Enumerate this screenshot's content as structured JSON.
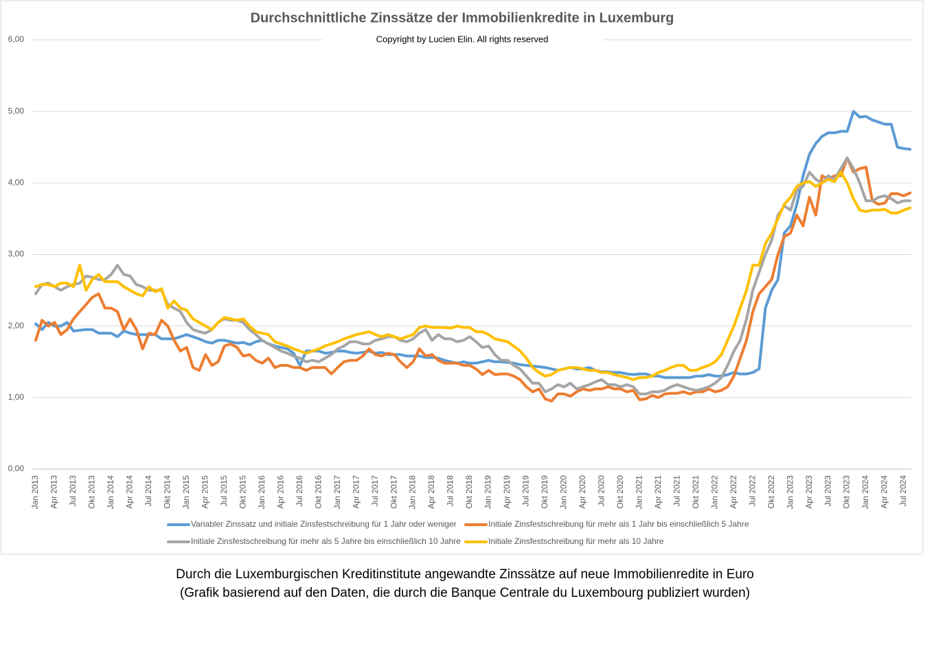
{
  "chart_data": {
    "type": "line",
    "title": "Durchschnittliche Zinssätze der Immobilienkredite in Luxemburg",
    "subtitle": "Copyright by Lucien Elin. All rights reserved",
    "caption": [
      "Durch die Luxemburgischen Kreditinstitute angewandte Zinssätze auf neue Immobilienredite in Euro",
      "(Grafik basierend auf den Daten, die durch die Banque Centrale du Luxembourg publiziert wurden)"
    ],
    "categories": [
      "Jan 2013",
      null,
      null,
      "Apr 2013",
      null,
      null,
      "Jul 2013",
      null,
      null,
      "Okt 2013",
      null,
      null,
      "Jan 2014",
      null,
      null,
      "Apr 2014",
      null,
      null,
      "Jul 2014",
      null,
      null,
      "Okt 2014",
      null,
      null,
      "Jan 2015",
      null,
      null,
      "Apr 2015",
      null,
      null,
      "Jul 2015",
      null,
      null,
      "Okt 2015",
      null,
      null,
      "Jan 2016",
      null,
      null,
      "Apr 2016",
      null,
      null,
      "Jul 2016",
      null,
      null,
      "Okt 2016",
      null,
      null,
      "Jan 2017",
      null,
      null,
      "Apr 2017",
      null,
      null,
      "Jul 2017",
      null,
      null,
      "Okt 2017",
      null,
      null,
      "Jan 2018",
      null,
      null,
      "Apr 2018",
      null,
      null,
      "Jul 2018",
      null,
      null,
      "Okt 2018",
      null,
      null,
      "Jan 2019",
      null,
      null,
      "Apr 2019",
      null,
      null,
      "Jul 2019",
      null,
      null,
      "Okt 2019",
      null,
      null,
      "Jan 2020",
      null,
      null,
      "Apr 2020",
      null,
      null,
      "Jul 2020",
      null,
      null,
      "Okt 2020",
      null,
      null,
      "Jan 2021",
      null,
      null,
      "Apr 2021",
      null,
      null,
      "Jul 2021",
      null,
      null,
      "Okt 2021",
      null,
      null,
      "Jan 2022",
      null,
      null,
      "Apr 2022",
      null,
      null,
      "Jul 2022",
      null,
      null,
      "Okt 2022",
      null,
      null,
      "Jan 2023",
      null,
      null,
      "Apr 2023",
      null,
      null,
      "Jul 2023",
      null,
      null,
      "Okt 2023",
      null,
      null,
      "Jan 2024",
      null,
      null,
      "Apr 2024",
      null,
      null,
      "Jul 2024",
      null
    ],
    "series": [
      {
        "name": "Variabler Zinssatz und initiale Zinsfestschreibung für 1 Jahr oder weniger",
        "color": "#5b9bd5",
        "values": [
          2.03,
          1.95,
          2.05,
          2.0,
          2.0,
          2.05,
          1.93,
          1.94,
          1.95,
          1.95,
          1.9,
          1.9,
          1.9,
          1.85,
          1.93,
          1.9,
          1.88,
          1.88,
          1.88,
          1.88,
          1.82,
          1.82,
          1.82,
          1.85,
          1.88,
          1.85,
          1.82,
          1.78,
          1.76,
          1.8,
          1.8,
          1.78,
          1.76,
          1.77,
          1.74,
          1.78,
          1.8,
          1.75,
          1.72,
          1.7,
          1.68,
          1.62,
          1.45,
          1.65,
          1.65,
          1.65,
          1.62,
          1.63,
          1.65,
          1.65,
          1.63,
          1.62,
          1.63,
          1.65,
          1.62,
          1.63,
          1.6,
          1.6,
          1.6,
          1.58,
          1.58,
          1.58,
          1.56,
          1.56,
          1.55,
          1.52,
          1.5,
          1.48,
          1.5,
          1.48,
          1.48,
          1.5,
          1.52,
          1.5,
          1.5,
          1.49,
          1.48,
          1.46,
          1.45,
          1.44,
          1.43,
          1.42,
          1.4,
          1.38,
          1.4,
          1.42,
          1.4,
          1.4,
          1.42,
          1.38,
          1.36,
          1.36,
          1.35,
          1.35,
          1.33,
          1.32,
          1.33,
          1.33,
          1.3,
          1.3,
          1.28,
          1.28,
          1.28,
          1.28,
          1.28,
          1.3,
          1.3,
          1.32,
          1.3,
          1.3,
          1.32,
          1.35,
          1.33,
          1.33,
          1.35,
          1.4,
          2.25,
          2.5,
          2.65,
          3.3,
          3.4,
          3.7,
          4.1,
          4.4,
          4.55,
          4.65,
          4.7,
          4.7,
          4.72,
          4.72,
          5.0,
          4.92,
          4.93,
          4.88,
          4.85,
          4.82,
          4.82,
          4.5,
          4.48,
          4.47
        ]
      },
      {
        "name": "Initiale Zinsfestschreibung für mehr als 1 Jahr bis einschließlich 5 Jahre",
        "color": "#ed7d31",
        "values": [
          1.8,
          2.08,
          2.0,
          2.05,
          1.88,
          1.95,
          2.1,
          2.2,
          2.3,
          2.4,
          2.45,
          2.25,
          2.25,
          2.2,
          1.95,
          2.1,
          1.95,
          1.68,
          1.9,
          1.88,
          2.08,
          2.0,
          1.8,
          1.65,
          1.7,
          1.42,
          1.38,
          1.6,
          1.45,
          1.5,
          1.72,
          1.75,
          1.7,
          1.58,
          1.6,
          1.52,
          1.48,
          1.55,
          1.42,
          1.45,
          1.45,
          1.42,
          1.42,
          1.38,
          1.42,
          1.42,
          1.42,
          1.33,
          1.42,
          1.5,
          1.52,
          1.52,
          1.58,
          1.68,
          1.6,
          1.58,
          1.62,
          1.6,
          1.5,
          1.42,
          1.5,
          1.68,
          1.58,
          1.6,
          1.52,
          1.48,
          1.48,
          1.48,
          1.45,
          1.45,
          1.4,
          1.32,
          1.38,
          1.32,
          1.33,
          1.33,
          1.3,
          1.25,
          1.15,
          1.08,
          1.12,
          0.98,
          0.95,
          1.05,
          1.05,
          1.02,
          1.08,
          1.12,
          1.1,
          1.12,
          1.12,
          1.15,
          1.12,
          1.12,
          1.08,
          1.1,
          0.97,
          0.98,
          1.03,
          1.0,
          1.05,
          1.06,
          1.06,
          1.08,
          1.05,
          1.08,
          1.08,
          1.12,
          1.08,
          1.1,
          1.15,
          1.3,
          1.55,
          1.8,
          2.2,
          2.45,
          2.55,
          2.65,
          3.0,
          3.25,
          3.3,
          3.55,
          3.4,
          3.8,
          3.55,
          4.1,
          4.05,
          4.1,
          4.1,
          4.35,
          4.15,
          4.2,
          4.22,
          3.75,
          3.7,
          3.72,
          3.85,
          3.85,
          3.82,
          3.86
        ]
      },
      {
        "name": "Initiale Zinsfestschreibung für mehr als 5 Jahre bis einschließlich 10 Jahre",
        "color": "#a5a5a5",
        "values": [
          2.45,
          2.58,
          2.6,
          2.55,
          2.5,
          2.55,
          2.58,
          2.6,
          2.7,
          2.68,
          2.65,
          2.65,
          2.72,
          2.85,
          2.72,
          2.7,
          2.58,
          2.55,
          2.5,
          2.5,
          2.5,
          2.3,
          2.25,
          2.2,
          2.05,
          1.95,
          1.92,
          1.9,
          1.95,
          2.05,
          2.1,
          2.08,
          2.08,
          2.05,
          1.95,
          1.88,
          1.8,
          1.75,
          1.7,
          1.65,
          1.62,
          1.58,
          1.55,
          1.5,
          1.52,
          1.5,
          1.55,
          1.6,
          1.68,
          1.72,
          1.78,
          1.78,
          1.75,
          1.75,
          1.8,
          1.82,
          1.85,
          1.85,
          1.8,
          1.78,
          1.82,
          1.9,
          1.95,
          1.8,
          1.88,
          1.82,
          1.82,
          1.78,
          1.8,
          1.85,
          1.78,
          1.7,
          1.72,
          1.6,
          1.52,
          1.52,
          1.45,
          1.4,
          1.3,
          1.2,
          1.2,
          1.08,
          1.12,
          1.18,
          1.15,
          1.2,
          1.12,
          1.15,
          1.18,
          1.22,
          1.25,
          1.18,
          1.18,
          1.15,
          1.18,
          1.15,
          1.05,
          1.05,
          1.08,
          1.08,
          1.1,
          1.15,
          1.18,
          1.15,
          1.12,
          1.1,
          1.12,
          1.15,
          1.2,
          1.28,
          1.45,
          1.65,
          1.8,
          2.1,
          2.5,
          2.75,
          3.0,
          3.2,
          3.55,
          3.68,
          3.62,
          3.9,
          3.95,
          4.15,
          4.05,
          4.0,
          4.1,
          4.05,
          4.2,
          4.35,
          4.2,
          4.0,
          3.75,
          3.75,
          3.8,
          3.82,
          3.78,
          3.72,
          3.75,
          3.75
        ]
      },
      {
        "name": "Initiale Zinsfestschreibung für mehr als 10 Jahre",
        "color": "#ffc000",
        "values": [
          2.55,
          2.58,
          2.58,
          2.55,
          2.6,
          2.6,
          2.55,
          2.85,
          2.5,
          2.65,
          2.72,
          2.62,
          2.62,
          2.62,
          2.55,
          2.5,
          2.45,
          2.42,
          2.55,
          2.48,
          2.52,
          2.25,
          2.35,
          2.25,
          2.22,
          2.1,
          2.05,
          2.0,
          1.95,
          2.05,
          2.12,
          2.1,
          2.08,
          2.1,
          2.0,
          1.92,
          1.9,
          1.88,
          1.78,
          1.75,
          1.72,
          1.68,
          1.65,
          1.62,
          1.65,
          1.68,
          1.72,
          1.75,
          1.78,
          1.82,
          1.85,
          1.88,
          1.9,
          1.92,
          1.88,
          1.85,
          1.88,
          1.85,
          1.82,
          1.85,
          1.88,
          1.98,
          2.0,
          1.98,
          1.98,
          1.98,
          1.97,
          2.0,
          1.98,
          1.98,
          1.92,
          1.92,
          1.88,
          1.82,
          1.8,
          1.78,
          1.72,
          1.65,
          1.55,
          1.42,
          1.35,
          1.3,
          1.32,
          1.38,
          1.4,
          1.42,
          1.42,
          1.4,
          1.38,
          1.38,
          1.35,
          1.35,
          1.32,
          1.3,
          1.28,
          1.25,
          1.28,
          1.28,
          1.3,
          1.35,
          1.38,
          1.42,
          1.45,
          1.45,
          1.38,
          1.38,
          1.42,
          1.45,
          1.5,
          1.6,
          1.8,
          2.0,
          2.25,
          2.5,
          2.85,
          2.85,
          3.15,
          3.3,
          3.5,
          3.7,
          3.8,
          3.95,
          4.0,
          4.02,
          3.95,
          4.0,
          4.05,
          4.02,
          4.15,
          4.0,
          3.78,
          3.62,
          3.6,
          3.62,
          3.62,
          3.63,
          3.58,
          3.58,
          3.62,
          3.65
        ]
      }
    ],
    "ylim": [
      0,
      6
    ],
    "yticks": [
      {
        "value": 0,
        "label": "0,00"
      },
      {
        "value": 1,
        "label": "1,00"
      },
      {
        "value": 2,
        "label": "2,00"
      },
      {
        "value": 3,
        "label": "3,00"
      },
      {
        "value": 4,
        "label": "4,00"
      },
      {
        "value": 5,
        "label": "5,00"
      },
      {
        "value": 6,
        "label": "6,00"
      }
    ],
    "grid": true,
    "legend": "bottom"
  }
}
